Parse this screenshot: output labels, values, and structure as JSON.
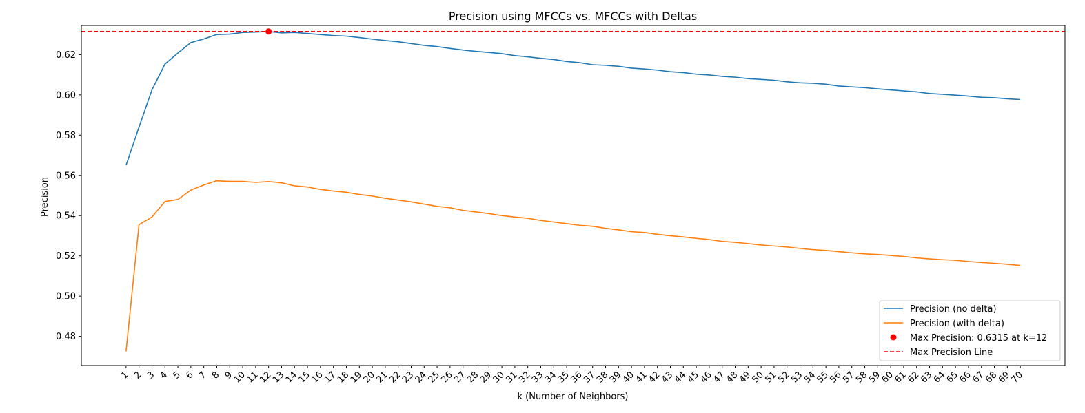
{
  "chart_data": {
    "type": "line",
    "title": "Precision using MFCCs vs. MFCCs with Deltas",
    "xlabel": "k (Number of Neighbors)",
    "ylabel": "Precision",
    "x": [
      1,
      2,
      3,
      4,
      5,
      6,
      7,
      8,
      9,
      10,
      11,
      12,
      13,
      14,
      15,
      16,
      17,
      18,
      19,
      20,
      21,
      22,
      23,
      24,
      25,
      26,
      27,
      28,
      29,
      30,
      31,
      32,
      33,
      34,
      35,
      36,
      37,
      38,
      39,
      40,
      41,
      42,
      43,
      44,
      45,
      46,
      47,
      48,
      49,
      50,
      51,
      52,
      53,
      54,
      55,
      56,
      57,
      58,
      59,
      60,
      61,
      62,
      63,
      64,
      65,
      66,
      67,
      68,
      69,
      70
    ],
    "xlim": [
      -2.45,
      73.45
    ],
    "ylim": [
      0.4655,
      0.6345
    ],
    "yticks": [
      0.48,
      0.5,
      0.52,
      0.54,
      0.56,
      0.58,
      0.6,
      0.62
    ],
    "grid": false,
    "legend_position": "lower right",
    "series": [
      {
        "name": "Precision (no delta)",
        "color": "#1f77b4",
        "values": [
          0.565,
          0.584,
          0.6025,
          0.6153,
          0.6208,
          0.626,
          0.6278,
          0.63,
          0.6302,
          0.631,
          0.6312,
          0.6315,
          0.6308,
          0.631,
          0.6305,
          0.63,
          0.6295,
          0.6292,
          0.6285,
          0.6277,
          0.627,
          0.6264,
          0.6255,
          0.6246,
          0.624,
          0.6231,
          0.6223,
          0.6216,
          0.6211,
          0.6205,
          0.6195,
          0.6189,
          0.6182,
          0.6176,
          0.6166,
          0.616,
          0.615,
          0.6147,
          0.6142,
          0.6133,
          0.6129,
          0.6123,
          0.6115,
          0.6111,
          0.6103,
          0.6099,
          0.6092,
          0.6088,
          0.6081,
          0.6077,
          0.6073,
          0.6065,
          0.606,
          0.6058,
          0.6053,
          0.6044,
          0.604,
          0.6036,
          0.603,
          0.6025,
          0.602,
          0.6015,
          0.6007,
          0.6003,
          0.5999,
          0.5994,
          0.5988,
          0.5986,
          0.5981,
          0.5977
        ]
      },
      {
        "name": "Precision (with delta)",
        "color": "#ff7f0e",
        "values": [
          0.4725,
          0.5355,
          0.5393,
          0.547,
          0.548,
          0.5527,
          0.5552,
          0.5573,
          0.557,
          0.557,
          0.5565,
          0.5569,
          0.5563,
          0.5548,
          0.5542,
          0.553,
          0.5522,
          0.5516,
          0.5505,
          0.5497,
          0.5486,
          0.5477,
          0.5468,
          0.5457,
          0.5446,
          0.5439,
          0.5426,
          0.5418,
          0.541,
          0.54,
          0.5393,
          0.5387,
          0.5376,
          0.5368,
          0.536,
          0.5352,
          0.5347,
          0.5337,
          0.5329,
          0.532,
          0.5316,
          0.5307,
          0.53,
          0.5294,
          0.5287,
          0.5281,
          0.5272,
          0.5267,
          0.5261,
          0.5254,
          0.5249,
          0.5244,
          0.5237,
          0.5231,
          0.5227,
          0.5221,
          0.5215,
          0.521,
          0.5207,
          0.5202,
          0.5197,
          0.519,
          0.5185,
          0.5181,
          0.5178,
          0.5172,
          0.5167,
          0.5163,
          0.5158,
          0.5152
        ]
      }
    ],
    "max_point": {
      "label": "Max Precision: 0.6315 at k=12",
      "x": 12,
      "y": 0.6315,
      "color": "#ff0000"
    },
    "max_line": {
      "label": "Max Precision Line",
      "y": 0.6315,
      "color": "#ff0000"
    }
  }
}
